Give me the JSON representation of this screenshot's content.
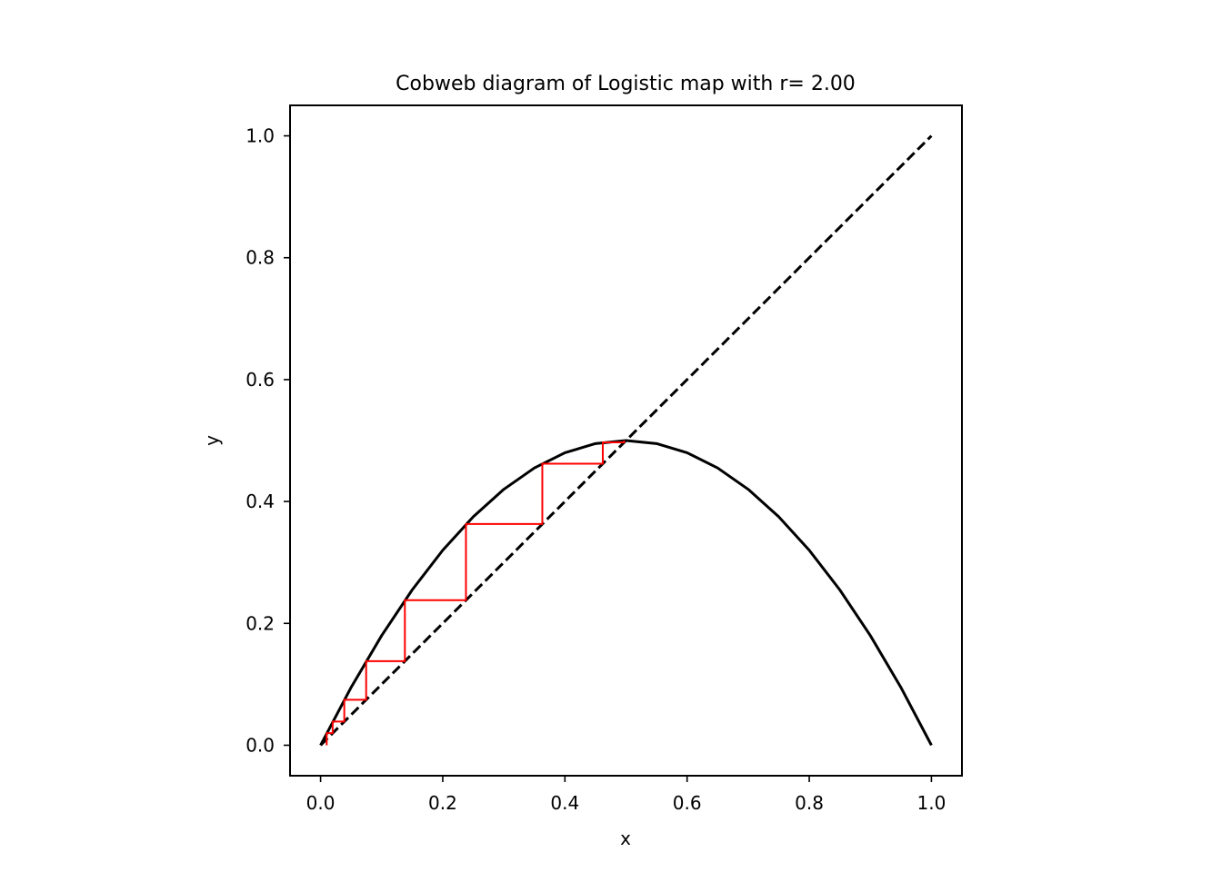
{
  "chart_data": {
    "type": "line",
    "title": "Cobweb diagram of Logistic map with r= 2.00",
    "xlabel": "x",
    "ylabel": "y",
    "xlim": [
      -0.05,
      1.05
    ],
    "ylim": [
      -0.05,
      1.05
    ],
    "xticks": [
      0.0,
      0.2,
      0.4,
      0.6,
      0.8,
      1.0
    ],
    "yticks": [
      0.0,
      0.2,
      0.4,
      0.6,
      0.8,
      1.0
    ],
    "xtick_labels": [
      "0.0",
      "0.2",
      "0.4",
      "0.6",
      "0.8",
      "1.0"
    ],
    "ytick_labels": [
      "0.0",
      "0.2",
      "0.4",
      "0.6",
      "0.8",
      "1.0"
    ],
    "grid": false,
    "legend": "none",
    "series": [
      {
        "kind": "curve",
        "style": "solid",
        "color": "#000000",
        "x": [
          0.0,
          0.05,
          0.1,
          0.15,
          0.2,
          0.25,
          0.3,
          0.35,
          0.4,
          0.45,
          0.5,
          0.55,
          0.6,
          0.65,
          0.7,
          0.75,
          0.8,
          0.85,
          0.9,
          0.95,
          1.0
        ],
        "y": [
          0.0,
          0.095,
          0.18,
          0.255,
          0.32,
          0.375,
          0.42,
          0.455,
          0.48,
          0.495,
          0.5,
          0.495,
          0.48,
          0.455,
          0.42,
          0.375,
          0.32,
          0.255,
          0.18,
          0.095,
          0.0
        ]
      },
      {
        "kind": "diagonal",
        "style": "dashed",
        "color": "#000000",
        "x": [
          0.0,
          1.0
        ],
        "y": [
          0.0,
          1.0
        ]
      },
      {
        "kind": "cobweb",
        "style": "solid",
        "color": "#ff0000",
        "x": [
          0.01,
          0.01,
          0.0198,
          0.0198,
          0.0388,
          0.0388,
          0.0746,
          0.0746,
          0.138,
          0.138,
          0.238,
          0.238,
          0.363,
          0.363,
          0.462,
          0.462,
          0.497,
          0.497
        ],
        "y": [
          0.0,
          0.0198,
          0.0198,
          0.0388,
          0.0388,
          0.0746,
          0.0746,
          0.138,
          0.138,
          0.238,
          0.238,
          0.363,
          0.363,
          0.462,
          0.462,
          0.497,
          0.497,
          0.5
        ]
      }
    ]
  }
}
